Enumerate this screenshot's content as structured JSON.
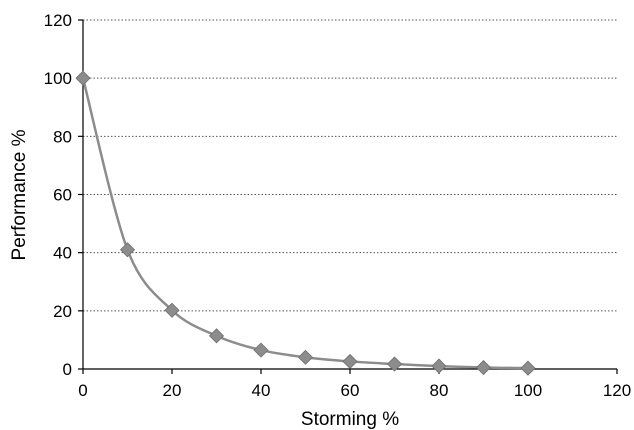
{
  "chart_data": {
    "type": "line",
    "title": "",
    "xlabel": "Storming %",
    "ylabel": "Performance %",
    "xlim": [
      0,
      120
    ],
    "ylim": [
      0,
      120
    ],
    "x_ticks": [
      "0",
      "20",
      "40",
      "60",
      "80",
      "100",
      "120"
    ],
    "y_ticks": [
      "0",
      "20",
      "40",
      "60",
      "80",
      "100",
      "120"
    ],
    "grid": "horizontal dotted",
    "legend": "none",
    "series": [
      {
        "marker": "diamond",
        "line": "smooth",
        "color": "#8c8c8c",
        "x": [
          0,
          10,
          20,
          30,
          40,
          50,
          60,
          70,
          80,
          90,
          100
        ],
        "y": [
          100,
          41,
          20.2,
          11.4,
          6.5,
          4.0,
          2.6,
          1.7,
          1.0,
          0.5,
          0.3
        ]
      }
    ]
  }
}
